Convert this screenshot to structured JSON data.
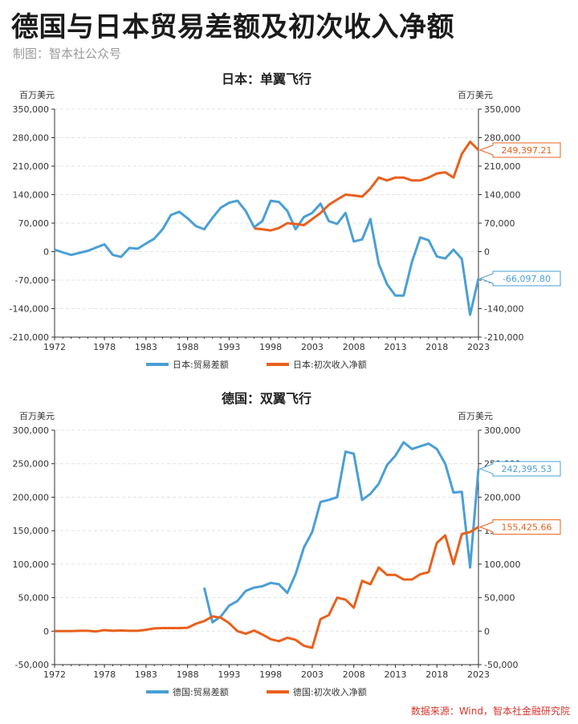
{
  "header": {
    "title": "德国与日本贸易差额及初次收入净额",
    "subtitle": "制图：智本社公众号"
  },
  "footer": {
    "source": "数据来源：Wind，智本社金融研究院"
  },
  "colors": {
    "trade": "#4a9fd5",
    "income": "#e8601c",
    "axis": "#333333",
    "grid": "#e3e3e3"
  },
  "chart_data": [
    {
      "type": "line",
      "title": "日本：单翼飞行",
      "ylabel_left": "百万美元",
      "ylabel_right": "百万美元",
      "x_ticks": [
        "1972",
        "1978",
        "1983",
        "1988",
        "1993",
        "1998",
        "2003",
        "2008",
        "2013",
        "2018",
        "2023"
      ],
      "xlim": [
        1972,
        2023
      ],
      "ylim": [
        -210000,
        350000
      ],
      "y_ticks": [
        -210000,
        -140000,
        -70000,
        0,
        70000,
        140000,
        210000,
        280000,
        350000
      ],
      "y_tick_labels": [
        "-210,000",
        "-140,000",
        "-70,000",
        "0",
        "70,000",
        "140,000",
        "210,000",
        "280,000",
        "350,000"
      ],
      "grid": true,
      "legend_position": "bottom",
      "series": [
        {
          "name": "日本:贸易差额",
          "color_key": "trade",
          "x": [
            1972,
            1973,
            1974,
            1975,
            1976,
            1977,
            1978,
            1979,
            1980,
            1981,
            1982,
            1983,
            1984,
            1985,
            1986,
            1987,
            1988,
            1989,
            1990,
            1991,
            1992,
            1993,
            1994,
            1995,
            1996,
            1997,
            1998,
            1999,
            2000,
            2001,
            2002,
            2003,
            2004,
            2005,
            2006,
            2007,
            2008,
            2009,
            2010,
            2011,
            2012,
            2013,
            2014,
            2015,
            2016,
            2017,
            2018,
            2019,
            2020,
            2021,
            2022,
            2023
          ],
          "values": [
            5000,
            -2000,
            -8000,
            -3000,
            2000,
            10000,
            18000,
            -8000,
            -13000,
            9000,
            7000,
            20000,
            32000,
            55000,
            90000,
            98000,
            82000,
            63000,
            55000,
            83000,
            108000,
            120000,
            125000,
            100000,
            60000,
            75000,
            125000,
            122000,
            100000,
            55000,
            85000,
            95000,
            118000,
            75000,
            68000,
            95000,
            25000,
            30000,
            80000,
            -30000,
            -80000,
            -108000,
            -108000,
            -25000,
            35000,
            28000,
            -12000,
            -17000,
            5000,
            -18000,
            -155000,
            -66097.8
          ]
        },
        {
          "name": "日本:初次收入净额",
          "color_key": "income",
          "x": [
            1996,
            1997,
            1998,
            1999,
            2000,
            2001,
            2002,
            2003,
            2004,
            2005,
            2006,
            2007,
            2008,
            2009,
            2010,
            2011,
            2012,
            2013,
            2014,
            2015,
            2016,
            2017,
            2018,
            2019,
            2020,
            2021,
            2022,
            2023
          ],
          "values": [
            57000,
            55000,
            52000,
            58000,
            70000,
            68000,
            65000,
            80000,
            95000,
            115000,
            128000,
            140000,
            138000,
            135000,
            155000,
            182000,
            175000,
            182000,
            182000,
            175000,
            175000,
            182000,
            192000,
            195000,
            182000,
            240000,
            270000,
            249397.21
          ]
        }
      ],
      "end_labels": [
        {
          "series_index": 1,
          "text": "249,397.21"
        },
        {
          "series_index": 0,
          "text": "-66,097.80"
        }
      ]
    },
    {
      "type": "line",
      "title": "德国：双翼飞行",
      "ylabel_left": "百万美元",
      "ylabel_right": "百万美元",
      "x_ticks": [
        "1972",
        "1978",
        "1983",
        "1988",
        "1993",
        "1998",
        "2003",
        "2008",
        "2013",
        "2018",
        "2023"
      ],
      "xlim": [
        1972,
        2023
      ],
      "ylim": [
        -50000,
        300000
      ],
      "y_ticks": [
        -50000,
        0,
        50000,
        100000,
        150000,
        200000,
        250000,
        300000
      ],
      "y_tick_labels": [
        "-50,000",
        "0",
        "50,000",
        "100,000",
        "150,000",
        "200,000",
        "250,000",
        "300,000"
      ],
      "grid": true,
      "legend_position": "bottom",
      "series": [
        {
          "name": "德国:贸易差额",
          "color_key": "trade",
          "x": [
            1990,
            1991,
            1992,
            1993,
            1994,
            1995,
            1996,
            1997,
            1998,
            1999,
            2000,
            2001,
            2002,
            2003,
            2004,
            2005,
            2006,
            2007,
            2008,
            2009,
            2010,
            2011,
            2012,
            2013,
            2014,
            2015,
            2016,
            2017,
            2018,
            2019,
            2020,
            2021,
            2022,
            2023
          ],
          "values": [
            65000,
            13000,
            22000,
            38000,
            45000,
            60000,
            65000,
            67000,
            72000,
            70000,
            57000,
            85000,
            125000,
            148000,
            193000,
            196000,
            200000,
            268000,
            265000,
            196000,
            205000,
            220000,
            248000,
            262000,
            282000,
            272000,
            276000,
            280000,
            272000,
            250000,
            207000,
            208000,
            95000,
            242395.53
          ]
        },
        {
          "name": "德国:初次收入净额",
          "color_key": "income",
          "x": [
            1972,
            1973,
            1974,
            1975,
            1976,
            1977,
            1978,
            1979,
            1980,
            1981,
            1982,
            1983,
            1984,
            1985,
            1986,
            1987,
            1988,
            1989,
            1990,
            1991,
            1992,
            1993,
            1994,
            1995,
            1996,
            1997,
            1998,
            1999,
            2000,
            2001,
            2002,
            2003,
            2004,
            2005,
            2006,
            2007,
            2008,
            2009,
            2010,
            2011,
            2012,
            2013,
            2014,
            2015,
            2016,
            2017,
            2018,
            2019,
            2020,
            2021,
            2022,
            2023
          ],
          "values": [
            0,
            0,
            0,
            500,
            500,
            -500,
            1500,
            500,
            1000,
            500,
            500,
            2000,
            4000,
            4500,
            4500,
            4500,
            5000,
            11000,
            15000,
            22000,
            20000,
            12000,
            0,
            -4000,
            1000,
            -5000,
            -12000,
            -15000,
            -10000,
            -13000,
            -22000,
            -25000,
            18000,
            24000,
            50000,
            47000,
            35000,
            75000,
            70000,
            95000,
            84000,
            84000,
            77000,
            77000,
            85000,
            88000,
            132000,
            143000,
            100000,
            145000,
            148000,
            155425.66
          ]
        }
      ],
      "end_labels": [
        {
          "series_index": 0,
          "text": "242,395.53"
        },
        {
          "series_index": 1,
          "text": "155,425.66"
        }
      ]
    }
  ]
}
